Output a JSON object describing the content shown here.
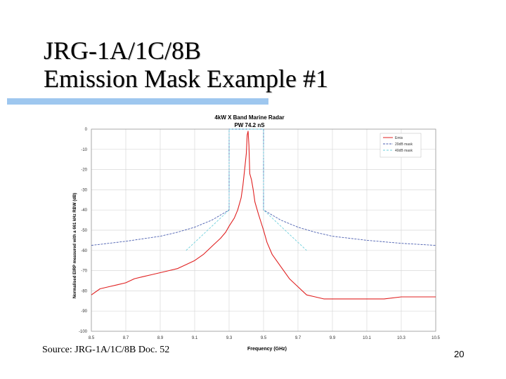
{
  "slide": {
    "title_line1": "JRG-1A/1C/8B",
    "title_line2": "Emission Mask Example #1",
    "source": "Source: JRG-1A/1C/8B Doc. 52",
    "page_number": "20"
  },
  "colors": {
    "title_rule": "#9ec7ef",
    "mask_20db": "#4b5fb0",
    "mask_40db": "#6fd0dc",
    "emission": "#e02020",
    "grid": "#d8d8d8"
  },
  "chart_data": {
    "type": "line",
    "title": "4kW X Band Marine Radar",
    "subtitle": "PW 74.2 nS",
    "xlabel": "Frequency (GHz)",
    "ylabel": "Normalised EIRP measured with a 661 kHz RBW (dB)",
    "xlim": [
      8.5,
      10.5
    ],
    "ylim": [
      -100,
      0
    ],
    "x_ticks": [
      8.5,
      8.7,
      8.9,
      9.1,
      9.3,
      9.5,
      9.7,
      9.9,
      10.1,
      10.3,
      10.5
    ],
    "x_tick_labels": [
      "8.5",
      "8.7",
      "8.9",
      "9.1",
      "9.3",
      "9.5",
      "9.7",
      "9.9",
      "10.1",
      "10.3",
      "10.5"
    ],
    "y_ticks": [
      0,
      -10,
      -20,
      -30,
      -40,
      -50,
      -60,
      -70,
      -80,
      -90,
      -100
    ],
    "y_tick_labels": [
      "0",
      "-10",
      "-20",
      "-30",
      "-40",
      "-50",
      "-60",
      "-70",
      "-80",
      "-90",
      "-100"
    ],
    "grid": true,
    "legend_position": "top-right",
    "series": [
      {
        "name": "Emis",
        "color": "#e02020",
        "x": [
          8.5,
          8.55,
          8.6,
          8.65,
          8.7,
          8.75,
          8.8,
          8.85,
          8.9,
          8.95,
          9.0,
          9.05,
          9.1,
          9.15,
          9.2,
          9.25,
          9.28,
          9.3,
          9.33,
          9.35,
          9.37,
          9.38,
          9.39,
          9.4,
          9.405,
          9.41,
          9.415,
          9.42,
          9.43,
          9.44,
          9.45,
          9.47,
          9.5,
          9.52,
          9.55,
          9.6,
          9.65,
          9.7,
          9.75,
          9.8,
          9.85,
          9.9,
          9.95,
          10.0,
          10.1,
          10.2,
          10.3,
          10.4,
          10.5
        ],
        "y": [
          -82,
          -79,
          -78,
          -77,
          -76,
          -74,
          -73,
          -72,
          -71,
          -70,
          -69,
          -67,
          -65,
          -62,
          -58,
          -54,
          -51,
          -48,
          -44,
          -40,
          -34,
          -28,
          -20,
          -12,
          -3,
          -1,
          -8,
          -22,
          -25,
          -30,
          -36,
          -42,
          -50,
          -56,
          -62,
          -68,
          -74,
          -78,
          -82,
          -83,
          -84,
          -84,
          -84,
          -84,
          -84,
          -84,
          -83,
          -83,
          -83
        ]
      },
      {
        "name": "20dB mask",
        "color": "#4b5fb0",
        "x": [
          8.5,
          8.7,
          8.9,
          9.0,
          9.1,
          9.2,
          9.25,
          9.3,
          9.3,
          9.5,
          9.5,
          9.55,
          9.6,
          9.7,
          9.8,
          9.9,
          10.1,
          10.3,
          10.5
        ],
        "y": [
          -57.5,
          -55.5,
          -53,
          -51,
          -48.5,
          -45,
          -42.5,
          -40,
          0,
          0,
          -40,
          -42.5,
          -45,
          -48.5,
          -51,
          -53,
          -55,
          -56.5,
          -57.5
        ]
      },
      {
        "name": "40dB mask",
        "color": "#6fd0dc",
        "x": [
          9.05,
          9.15,
          9.25,
          9.3,
          9.3,
          9.5,
          9.5,
          9.55,
          9.65,
          9.75
        ],
        "y": [
          -60,
          -52,
          -44,
          -40,
          0,
          0,
          -40,
          -44,
          -52,
          -60
        ]
      }
    ]
  }
}
